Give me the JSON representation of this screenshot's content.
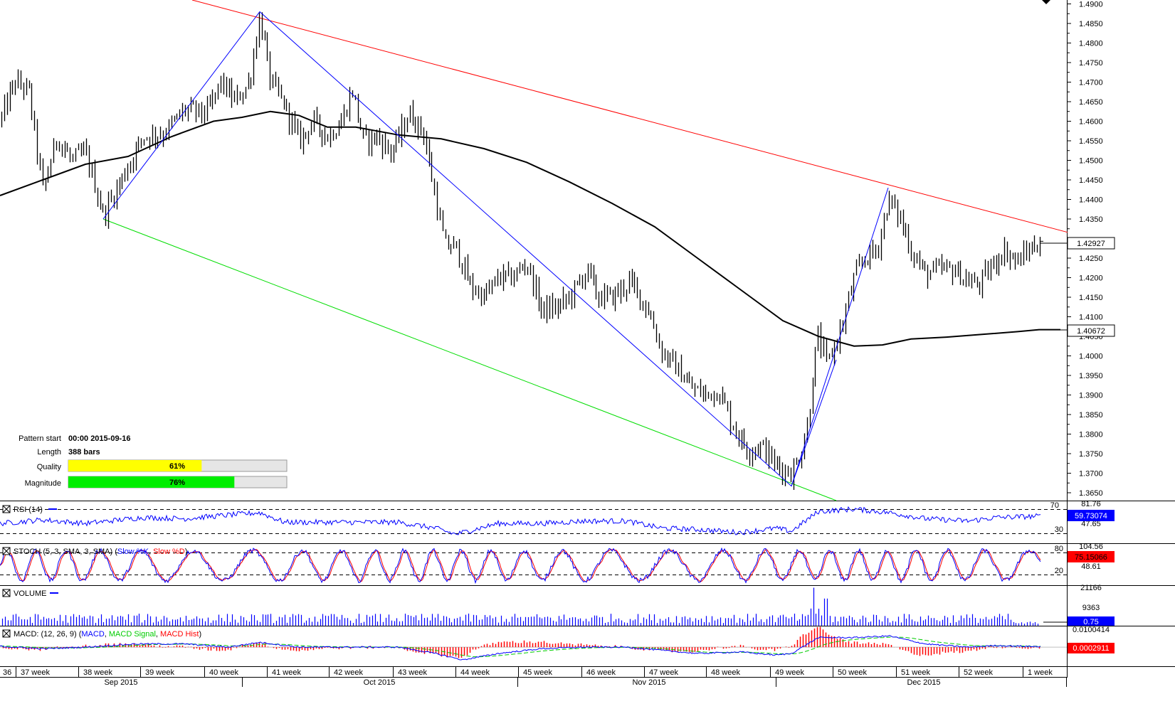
{
  "chart_data": {
    "type": "bar",
    "instrument_timeframe": "4H",
    "main": {
      "ylim": [
        1.363,
        1.491
      ],
      "y_ticks": [
        "1.4900",
        "1.4850",
        "1.4800",
        "1.4750",
        "1.4700",
        "1.4650",
        "1.4600",
        "1.4550",
        "1.4500",
        "1.4450",
        "1.4400",
        "1.4350",
        "1.4250",
        "1.4200",
        "1.4150",
        "1.4100",
        "1.4050",
        "1.4000",
        "1.3950",
        "1.3900",
        "1.3850",
        "1.3800",
        "1.3750",
        "1.3700",
        "1.3650"
      ],
      "y_tick_values": [
        1.49,
        1.485,
        1.48,
        1.475,
        1.47,
        1.465,
        1.46,
        1.455,
        1.45,
        1.445,
        1.44,
        1.435,
        1.425,
        1.42,
        1.415,
        1.41,
        1.405,
        1.4,
        1.395,
        1.39,
        1.385,
        1.38,
        1.375,
        1.37,
        1.365
      ],
      "last_price": "1.42927",
      "ma_value": "1.40672",
      "price_path": [
        [
          0,
          1.46
        ],
        [
          20,
          1.47
        ],
        [
          40,
          1.468
        ],
        [
          60,
          1.442
        ],
        [
          80,
          1.456
        ],
        [
          100,
          1.45
        ],
        [
          120,
          1.452
        ],
        [
          145,
          1.436
        ],
        [
          170,
          1.445
        ],
        [
          200,
          1.456
        ],
        [
          230,
          1.457
        ],
        [
          260,
          1.463
        ],
        [
          290,
          1.462
        ],
        [
          310,
          1.47
        ],
        [
          330,
          1.465
        ],
        [
          350,
          1.47
        ],
        [
          365,
          1.487
        ],
        [
          380,
          1.47
        ],
        [
          400,
          1.464
        ],
        [
          420,
          1.455
        ],
        [
          440,
          1.46
        ],
        [
          460,
          1.456
        ],
        [
          480,
          1.46
        ],
        [
          495,
          1.468
        ],
        [
          510,
          1.455
        ],
        [
          530,
          1.456
        ],
        [
          550,
          1.452
        ],
        [
          575,
          1.462
        ],
        [
          595,
          1.457
        ],
        [
          612,
          1.44
        ],
        [
          625,
          1.428
        ],
        [
          640,
          1.428
        ],
        [
          660,
          1.418
        ],
        [
          680,
          1.415
        ],
        [
          700,
          1.42
        ],
        [
          720,
          1.42
        ],
        [
          740,
          1.424
        ],
        [
          760,
          1.412
        ],
        [
          780,
          1.412
        ],
        [
          800,
          1.415
        ],
        [
          825,
          1.422
        ],
        [
          840,
          1.415
        ],
        [
          860,
          1.415
        ],
        [
          885,
          1.419
        ],
        [
          910,
          1.412
        ],
        [
          930,
          1.401
        ],
        [
          950,
          1.397
        ],
        [
          970,
          1.392
        ],
        [
          990,
          1.39
        ],
        [
          1010,
          1.391
        ],
        [
          1030,
          1.382
        ],
        [
          1050,
          1.376
        ],
        [
          1070,
          1.377
        ],
        [
          1090,
          1.372
        ],
        [
          1112,
          1.37
        ],
        [
          1125,
          1.375
        ],
        [
          1135,
          1.383
        ],
        [
          1148,
          1.405
        ],
        [
          1162,
          1.398
        ],
        [
          1180,
          1.406
        ],
        [
          1200,
          1.42
        ],
        [
          1215,
          1.425
        ],
        [
          1232,
          1.427
        ],
        [
          1248,
          1.44
        ],
        [
          1265,
          1.435
        ],
        [
          1280,
          1.427
        ],
        [
          1300,
          1.421
        ],
        [
          1320,
          1.422
        ],
        [
          1340,
          1.422
        ],
        [
          1360,
          1.419
        ],
        [
          1375,
          1.418
        ],
        [
          1390,
          1.422
        ],
        [
          1410,
          1.427
        ],
        [
          1430,
          1.424
        ],
        [
          1445,
          1.427
        ],
        [
          1460,
          1.429
        ]
      ],
      "sma_path": [
        [
          0,
          1.441
        ],
        [
          60,
          1.445
        ],
        [
          120,
          1.449
        ],
        [
          180,
          1.451
        ],
        [
          240,
          1.456
        ],
        [
          300,
          1.46
        ],
        [
          340,
          1.461
        ],
        [
          380,
          1.4625
        ],
        [
          420,
          1.4615
        ],
        [
          460,
          1.4585
        ],
        [
          500,
          1.4585
        ],
        [
          560,
          1.4565
        ],
        [
          620,
          1.4555
        ],
        [
          680,
          1.453
        ],
        [
          740,
          1.4495
        ],
        [
          800,
          1.4445
        ],
        [
          860,
          1.439
        ],
        [
          920,
          1.433
        ],
        [
          980,
          1.425
        ],
        [
          1040,
          1.417
        ],
        [
          1100,
          1.409
        ],
        [
          1150,
          1.405
        ],
        [
          1200,
          1.4025
        ],
        [
          1240,
          1.4028
        ],
        [
          1280,
          1.4043
        ],
        [
          1330,
          1.4048
        ],
        [
          1380,
          1.4055
        ],
        [
          1430,
          1.4062
        ],
        [
          1460,
          1.4067
        ],
        [
          1490,
          1.4067
        ]
      ],
      "pattern": {
        "upper_line": [
          [
            270,
            1.491
          ],
          [
            1500,
            1.4316
          ]
        ],
        "lower_line": [
          [
            145,
            1.435
          ],
          [
            1175,
            1.363
          ]
        ],
        "zigzag": [
          [
            145,
            1.435
          ],
          [
            365,
            1.488
          ],
          [
            1112,
            1.3667
          ],
          [
            1248,
            1.443
          ]
        ],
        "partial_leg": [
          [
            1112,
            1.3667
          ],
          [
            1175,
            1.399
          ]
        ]
      },
      "info": {
        "pattern_start_label": "Pattern start",
        "pattern_start_value": "00:00 2015-09-16",
        "length_label": "Length",
        "length_value": "388 bars",
        "quality_label": "Quality",
        "quality": 61,
        "quality_text": "61%",
        "magnitude_label": "Magnitude",
        "magnitude": 76,
        "magnitude_text": "76%"
      }
    },
    "rsi": {
      "title": "RSI (14)",
      "levels": [
        70,
        30
      ],
      "level_labels": [
        "70",
        "30"
      ],
      "scale_labels": [
        "81.76",
        "47.65"
      ],
      "ylim": [
        15,
        85
      ],
      "last_value": "59.73074",
      "path": [
        [
          0,
          48
        ],
        [
          60,
          54
        ],
        [
          120,
          48
        ],
        [
          200,
          58
        ],
        [
          260,
          56
        ],
        [
          320,
          62
        ],
        [
          365,
          66
        ],
        [
          400,
          50
        ],
        [
          470,
          50
        ],
        [
          560,
          50
        ],
        [
          612,
          40
        ],
        [
          640,
          30
        ],
        [
          700,
          48
        ],
        [
          760,
          48
        ],
        [
          820,
          52
        ],
        [
          880,
          52
        ],
        [
          930,
          40
        ],
        [
          980,
          38
        ],
        [
          1040,
          33
        ],
        [
          1090,
          40
        ],
        [
          1112,
          35
        ],
        [
          1150,
          68
        ],
        [
          1200,
          72
        ],
        [
          1250,
          66
        ],
        [
          1300,
          56
        ],
        [
          1360,
          52
        ],
        [
          1400,
          58
        ],
        [
          1460,
          60
        ]
      ]
    },
    "stoch": {
      "title": "STOCH (5, 3, SMA, 3, SMA)",
      "k_label": "Slow %K",
      "d_label": "Slow %D",
      "k_color": "#0000ff",
      "d_color": "#ff0000",
      "levels": [
        80,
        20
      ],
      "level_labels": [
        "80",
        "20"
      ],
      "scale_labels": [
        "104.56",
        "48.61"
      ],
      "ylim": [
        -5,
        110
      ],
      "last_value": "75.15066"
    },
    "volume": {
      "title": "VOLUME",
      "scale_labels": [
        "21166",
        "9363"
      ],
      "ylim": [
        0,
        22000
      ],
      "last_value": "0.75"
    },
    "macd": {
      "title": "MACD: (12, 26, 9)",
      "macd_label": "MACD",
      "signal_label": "MACD Signal",
      "hist_label": "MACD Hist",
      "macd_color": "#0000ff",
      "signal_color": "#00cc00",
      "hist_color": "#ff0000",
      "scale_labels": [
        "0.0100414"
      ],
      "last_value": "0.0002911",
      "ylim": [
        -0.012,
        0.013
      ],
      "path": [
        [
          0,
          0.0005
        ],
        [
          60,
          -0.001
        ],
        [
          120,
          0.0
        ],
        [
          190,
          0.002
        ],
        [
          260,
          0.002
        ],
        [
          320,
          0.0
        ],
        [
          365,
          0.003
        ],
        [
          420,
          0.0
        ],
        [
          500,
          0.0
        ],
        [
          560,
          0.0
        ],
        [
          612,
          -0.004
        ],
        [
          650,
          -0.008
        ],
        [
          700,
          -0.004
        ],
        [
          760,
          -0.001
        ],
        [
          820,
          0.0
        ],
        [
          880,
          0.0
        ],
        [
          930,
          -0.002
        ],
        [
          980,
          -0.004
        ],
        [
          1040,
          -0.003
        ],
        [
          1090,
          -0.005
        ],
        [
          1112,
          -0.004
        ],
        [
          1150,
          0.006
        ],
        [
          1200,
          0.006
        ],
        [
          1250,
          0.007
        ],
        [
          1300,
          0.002
        ],
        [
          1360,
          0.0
        ],
        [
          1400,
          0.001
        ],
        [
          1460,
          0.0003
        ]
      ]
    },
    "x_axis": {
      "week_labels": [
        "36",
        "37 week",
        "38 week",
        "39 week",
        "40 week",
        "41 week",
        "42 week",
        "43 week",
        "44 week",
        "45 week",
        "46 week",
        "47 week",
        "48 week",
        "49 week",
        "50 week",
        "51 week",
        "52 week",
        "1 week"
      ],
      "week_positions": [
        0,
        25,
        113,
        200,
        290,
        378,
        465,
        555,
        643,
        731,
        820,
        908,
        995,
        1085,
        1173,
        1262,
        1350,
        1440
      ],
      "month_labels": [
        "Sep 2015",
        "Oct 2015",
        "Nov 2015",
        "Dec 2015"
      ],
      "month_centers": [
        170,
        533,
        912,
        1298
      ],
      "month_separators": [
        340,
        727,
        1090,
        1498
      ]
    }
  }
}
